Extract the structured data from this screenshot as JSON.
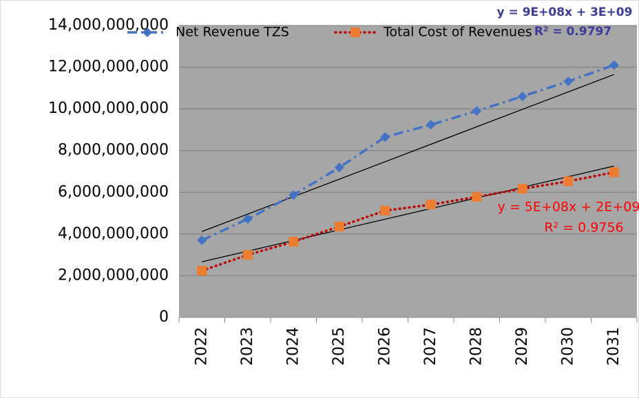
{
  "chart_data": {
    "type": "line",
    "categories": [
      "2022",
      "2023",
      "2024",
      "2025",
      "2026",
      "2027",
      "2028",
      "2029",
      "2030",
      "2031"
    ],
    "ylim": [
      0,
      14000000000
    ],
    "yticks": [
      0,
      {
        "value": 2000000000,
        "label": "2,000,000,000"
      },
      {
        "value": 4000000000,
        "label": "4,000,000,000"
      },
      {
        "value": 6000000000,
        "label": "6,000,000,000"
      },
      {
        "value": 8000000000,
        "label": "8,000,000,000"
      },
      {
        "value": 10000000000,
        "label": "10,000,000,000"
      },
      {
        "value": 12000000000,
        "label": "12,000,000,000"
      },
      {
        "value": 14000000000,
        "label": "14,000,000,000"
      }
    ],
    "grid": true,
    "legend": "top",
    "series": [
      {
        "name": "Net Revenue TZS",
        "marker": "diamond",
        "marker_color": "#4472c4",
        "line_color": "#4472c4",
        "line_style": "dashdot",
        "values": [
          3700000000,
          4720000000,
          5870000000,
          7190000000,
          8650000000,
          9240000000,
          9900000000,
          10600000000,
          11320000000,
          12100000000
        ],
        "trendline": [
          4120000000,
          11650000000
        ],
        "trendline_equation": "y = 9E+08x + 3E+09",
        "trendline_r2": "R² = 0.9797",
        "trendline_label_color": "#3b3b9b"
      },
      {
        "name": "Total Cost of Revenues",
        "marker": "square",
        "marker_color": "#ed7d31",
        "line_color": "#c00000",
        "line_style": "dotted",
        "values": [
          2240000000,
          3000000000,
          3630000000,
          4360000000,
          5120000000,
          5410000000,
          5780000000,
          6170000000,
          6530000000,
          6960000000
        ],
        "trendline": [
          2670000000,
          7260000000
        ],
        "trendline_equation": "y = 5E+08x + 2E+09",
        "trendline_r2": "R² = 0.9756",
        "trendline_label_color": "#ff0000"
      }
    ]
  }
}
